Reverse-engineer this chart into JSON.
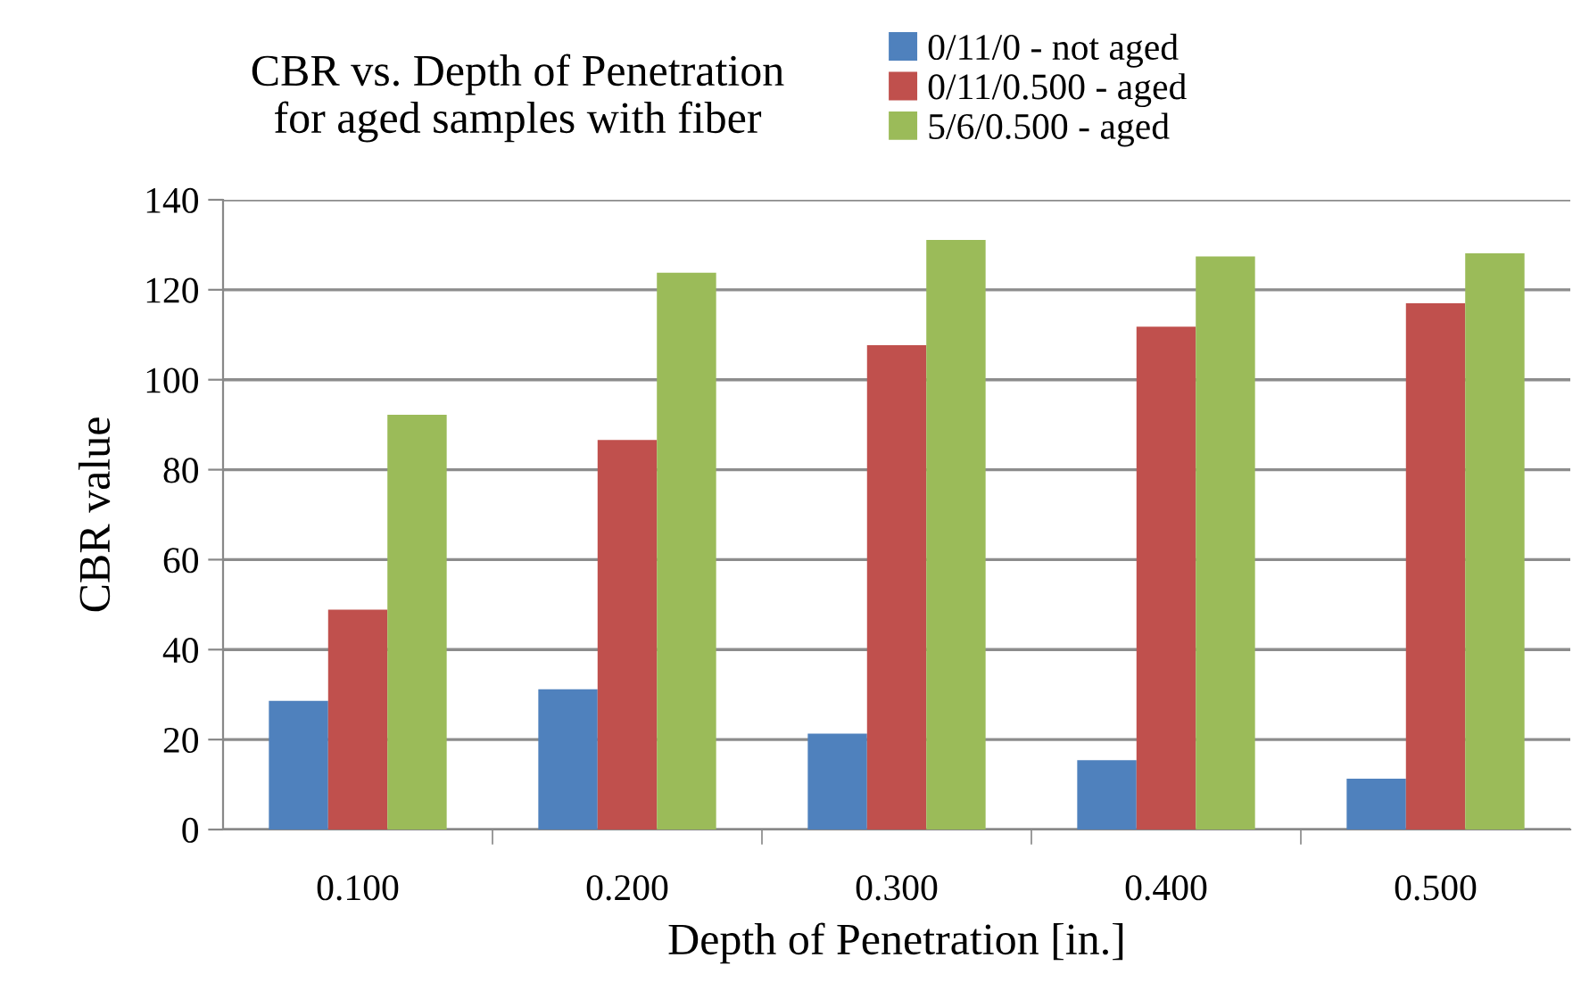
{
  "chart_data": {
    "type": "bar",
    "title": "CBR vs. Depth of Penetration\nfor aged samples with fiber",
    "xlabel": "Depth of Penetration [in.]",
    "ylabel": "CBR value",
    "categories": [
      "0.100",
      "0.200",
      "0.300",
      "0.400",
      "0.500"
    ],
    "series": [
      {
        "name": "0/11/0 - not aged",
        "color": "#4f81bd",
        "values": [
          28.6,
          31.2,
          21.3,
          15.4,
          11.3
        ]
      },
      {
        "name": "0/11/0.500 - aged",
        "color": "#c0504d",
        "values": [
          48.9,
          86.6,
          107.7,
          111.8,
          117.0
        ]
      },
      {
        "name": "5/6/0.500 - aged",
        "color": "#9bbb59",
        "values": [
          92.2,
          123.8,
          131.1,
          127.4,
          128.1
        ]
      }
    ],
    "ylim": [
      0,
      140
    ],
    "yticks": [
      0,
      20,
      40,
      60,
      80,
      100,
      120,
      140
    ],
    "grid": "y",
    "legend": "top right"
  }
}
